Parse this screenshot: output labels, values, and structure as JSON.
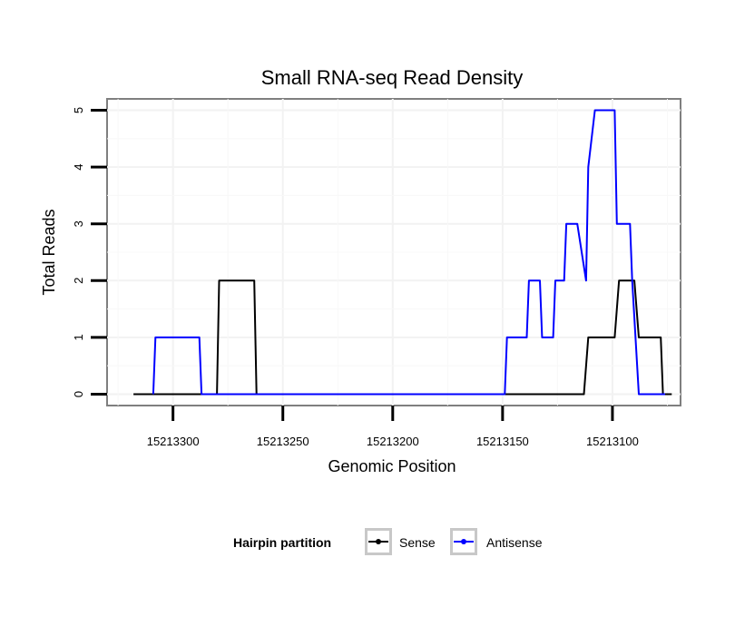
{
  "chart_data": {
    "type": "line",
    "title": "Small RNA-seq Read Density",
    "xlabel": "Genomic Position",
    "ylabel": "Total Reads",
    "x_reversed": true,
    "xlim": [
      15213330,
      15213069
    ],
    "ylim": [
      -0.2,
      5.2
    ],
    "x_ticks": [
      15213300,
      15213250,
      15213200,
      15213150,
      15213100
    ],
    "x_tick_labels": [
      "15213300",
      "15213250",
      "15213200",
      "15213150",
      "15213100"
    ],
    "y_ticks": [
      0,
      1,
      2,
      3,
      4,
      5
    ],
    "y_tick_labels": [
      "0",
      "1",
      "2",
      "3",
      "4",
      "5"
    ],
    "grid": true,
    "legend_title": "Hairpin partition",
    "legend_position": "bottom",
    "series": [
      {
        "name": "Sense",
        "color": "#000000",
        "x": [
          15213318,
          15213280,
          15213279,
          15213263,
          15213262,
          15213113,
          15213111,
          15213099,
          15213097,
          15213090,
          15213088,
          15213078,
          15213077,
          15213073
        ],
        "y": [
          0,
          0,
          2,
          2,
          0,
          0,
          1,
          1,
          2,
          2,
          1,
          1,
          0,
          0
        ]
      },
      {
        "name": "Antisense",
        "color": "#0000ff",
        "x": [
          15213309,
          15213308,
          15213288,
          15213287,
          15213149,
          15213148,
          15213139,
          15213138,
          15213133,
          15213132,
          15213127,
          15213126,
          15213122,
          15213121,
          15213120,
          15213117,
          15213116,
          15213112,
          15213111,
          15213108,
          15213099,
          15213098,
          15213092,
          15213091,
          15213088,
          15213076
        ],
        "y": [
          0,
          1,
          1,
          0,
          0,
          1,
          1,
          2,
          2,
          1,
          1,
          2,
          2,
          3,
          3,
          3,
          3,
          2,
          4,
          5,
          5,
          3,
          3,
          2,
          0,
          0
        ]
      }
    ]
  }
}
